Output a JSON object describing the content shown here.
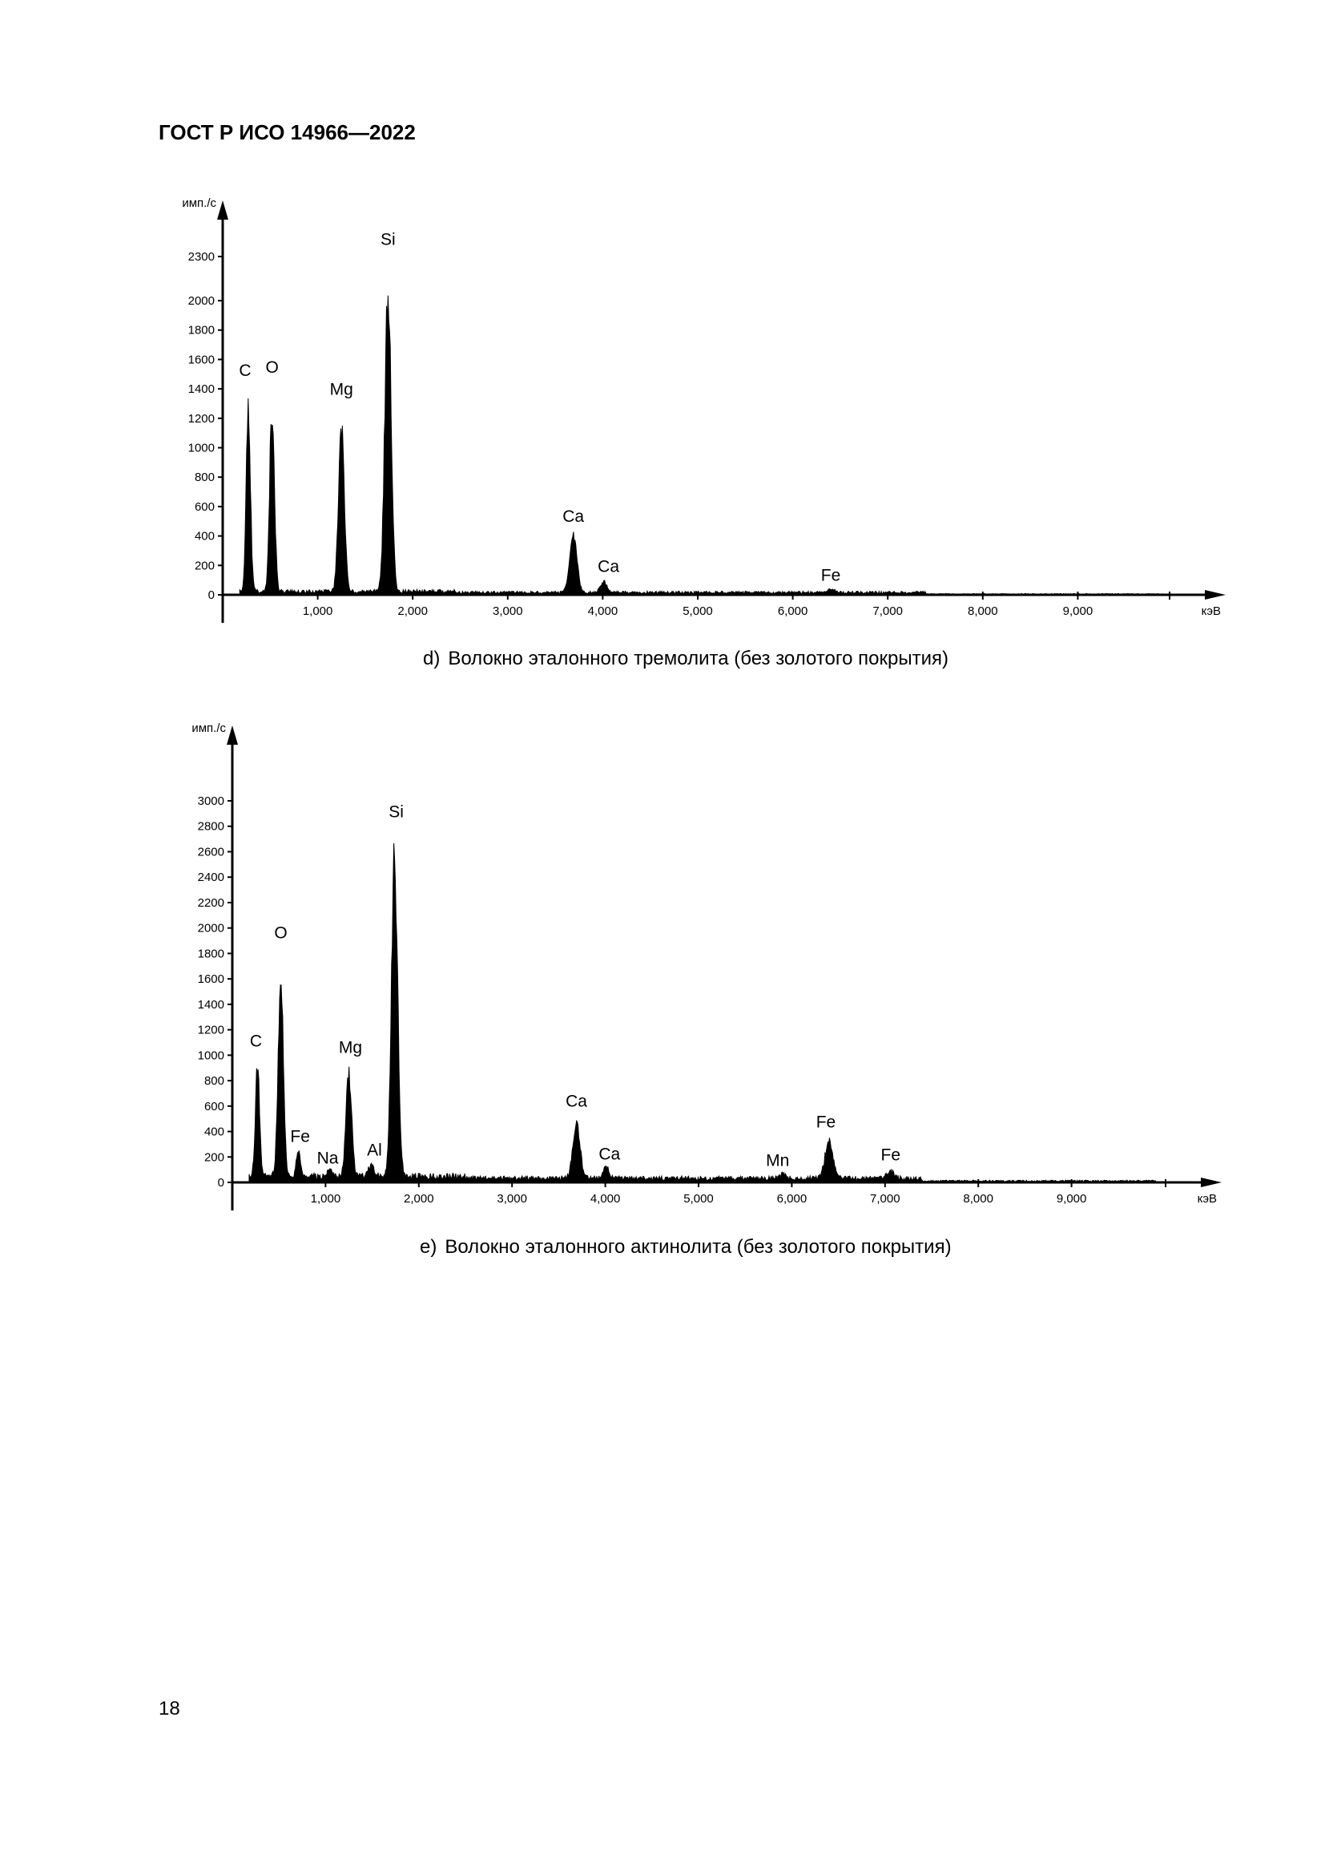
{
  "header": {
    "doc_code": "ГОСТ Р ИСО 14966—2022"
  },
  "page": {
    "number": "18"
  },
  "chart_data": [
    {
      "type": "area",
      "panel": "d)",
      "caption": "Волокно эталонного тремолита (без золотого покрытия)",
      "ylabel": "имп./с",
      "xlabel": "кэВ",
      "ylim": [
        0,
        2450
      ],
      "xlim": [
        0,
        10600
      ],
      "y_ticks": [
        0,
        200,
        400,
        600,
        800,
        1000,
        1200,
        1400,
        1600,
        1800,
        2000,
        2300
      ],
      "x_ticks": [
        1000,
        2000,
        3000,
        4000,
        5000,
        6000,
        7000,
        8000,
        9000
      ],
      "x_tick_labels": [
        "1,000",
        "2,000",
        "3,000",
        "4,000",
        "5,000",
        "6,000",
        "7,000",
        "8,000",
        "9,000"
      ],
      "baseline": 20,
      "peaks": [
        {
          "x": 270,
          "y": 1380,
          "w": 40,
          "label": "C"
        },
        {
          "x": 520,
          "y": 1400,
          "w": 45,
          "label": "O"
        },
        {
          "x": 1250,
          "y": 1240,
          "w": 55,
          "label": "Mg"
        },
        {
          "x": 1740,
          "y": 2260,
          "w": 60,
          "label": "Si"
        },
        {
          "x": 3690,
          "y": 410,
          "w": 70,
          "label": "Ca"
        },
        {
          "x": 4010,
          "y": 80,
          "w": 60,
          "label": "Ca"
        },
        {
          "x": 6400,
          "y": 30,
          "w": 60,
          "label": "Fe"
        }
      ]
    },
    {
      "type": "area",
      "panel": "e)",
      "caption": "Волокно эталонного актинолита (без золотого покрытия)",
      "ylabel": "имп./с",
      "xlabel": "кэВ",
      "ylim": [
        0,
        3200
      ],
      "xlim": [
        0,
        10500
      ],
      "y_ticks": [
        0,
        200,
        400,
        600,
        800,
        1000,
        1200,
        1400,
        1600,
        1800,
        2000,
        2200,
        2400,
        2600,
        2800,
        3000
      ],
      "x_ticks": [
        1000,
        2000,
        3000,
        4000,
        5000,
        6000,
        7000,
        8000,
        9000
      ],
      "x_tick_labels": [
        "1,000",
        "2,000",
        "3,000",
        "4,000",
        "5,000",
        "6,000",
        "7,000",
        "8,000",
        "9,000"
      ],
      "baseline": 40,
      "peaks": [
        {
          "x": 270,
          "y": 930,
          "w": 40,
          "label": "C"
        },
        {
          "x": 520,
          "y": 1780,
          "w": 50,
          "label": "O"
        },
        {
          "x": 710,
          "y": 230,
          "w": 40,
          "label": "Fe"
        },
        {
          "x": 1040,
          "y": 60,
          "w": 50,
          "label": "Na"
        },
        {
          "x": 1250,
          "y": 880,
          "w": 55,
          "label": "Mg"
        },
        {
          "x": 1490,
          "y": 110,
          "w": 50,
          "label": "Al"
        },
        {
          "x": 1740,
          "y": 2720,
          "w": 60,
          "label": "Si"
        },
        {
          "x": 3690,
          "y": 470,
          "w": 70,
          "label": "Ca"
        },
        {
          "x": 4010,
          "y": 90,
          "w": 60,
          "label": "Ca"
        },
        {
          "x": 5900,
          "y": 40,
          "w": 60,
          "label": "Mn"
        },
        {
          "x": 6400,
          "y": 330,
          "w": 75,
          "label": "Fe"
        },
        {
          "x": 7060,
          "y": 60,
          "w": 70,
          "label": "Fe"
        }
      ]
    }
  ]
}
